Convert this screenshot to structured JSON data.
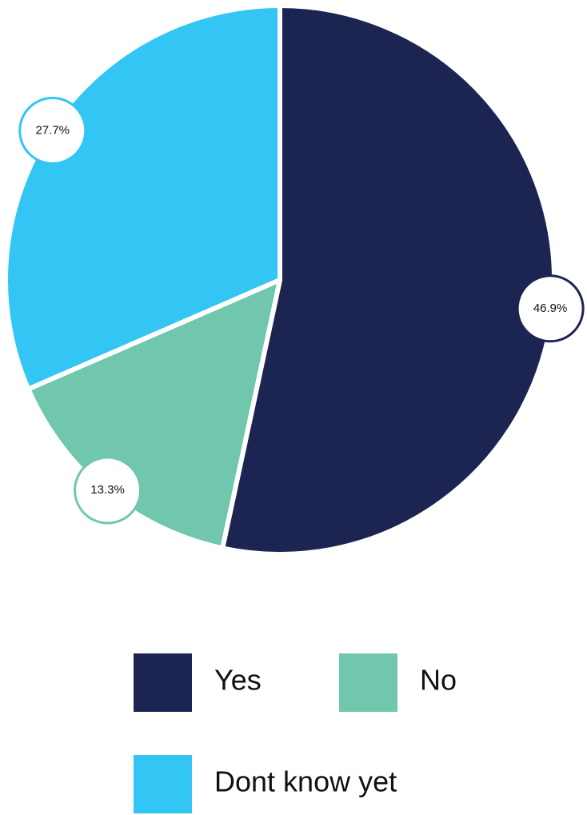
{
  "chart_data": {
    "type": "pie",
    "categories": [
      "Yes",
      "No",
      "Dont know yet"
    ],
    "values": [
      46.9,
      13.3,
      27.7
    ],
    "value_labels": [
      "46.9%",
      "13.3%",
      "27.7%"
    ],
    "colors": [
      "#1c2551",
      "#70c7ae",
      "#33c5f3"
    ]
  }
}
